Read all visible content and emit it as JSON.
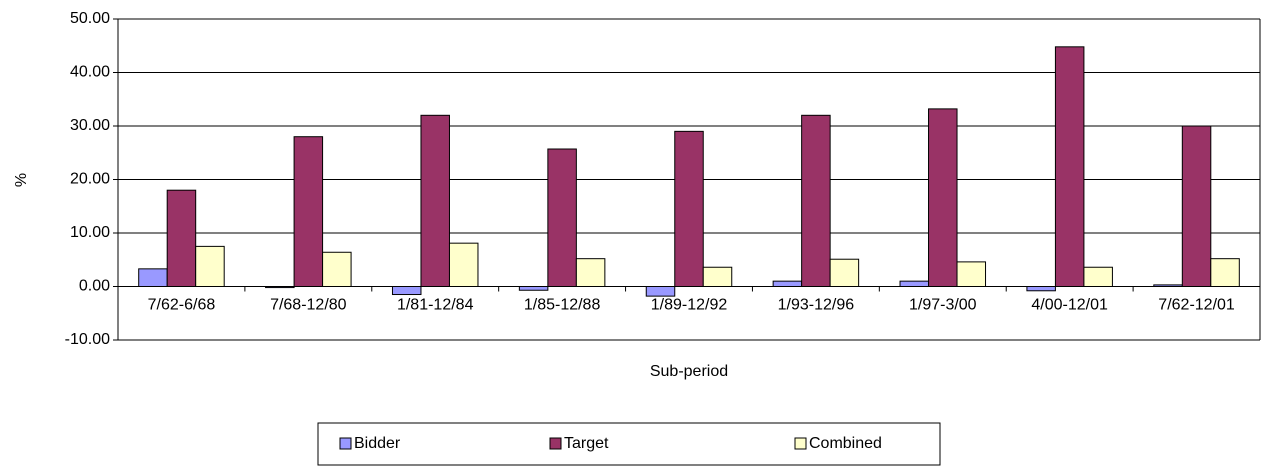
{
  "chart_data": {
    "type": "bar",
    "x_label": "Sub-period",
    "y_label": "%",
    "categories": [
      "7/62-6/68",
      "7/68-12/80",
      "1/81-12/84",
      "1/85-12/88",
      "1/89-12/92",
      "1/93-12/96",
      "1/97-3/00",
      "4/00-12/01",
      "7/62-12/01"
    ],
    "series": [
      {
        "name": "Bidder",
        "color": "#9999ff",
        "values": [
          3.3,
          -0.2,
          -1.5,
          -0.7,
          -1.8,
          1.0,
          1.0,
          -0.8,
          0.3
        ]
      },
      {
        "name": "Target",
        "color": "#993366",
        "values": [
          18.0,
          28.0,
          32.0,
          25.7,
          29.0,
          32.0,
          33.2,
          44.8,
          30.0
        ]
      },
      {
        "name": "Combined",
        "color": "#ffffcc",
        "values": [
          7.5,
          6.4,
          8.1,
          5.2,
          3.6,
          5.1,
          4.6,
          3.6,
          5.2
        ]
      }
    ],
    "ylim": [
      -10,
      50
    ],
    "yticks": [
      {
        "value": -10,
        "label": "-10.00"
      },
      {
        "value": 0,
        "label": "0.00"
      },
      {
        "value": 10,
        "label": "10.00"
      },
      {
        "value": 20,
        "label": "20.00"
      },
      {
        "value": 30,
        "label": "30.00"
      },
      {
        "value": 40,
        "label": "40.00"
      },
      {
        "value": 50,
        "label": "50.00"
      }
    ],
    "grid": true,
    "legend": "bottom"
  }
}
